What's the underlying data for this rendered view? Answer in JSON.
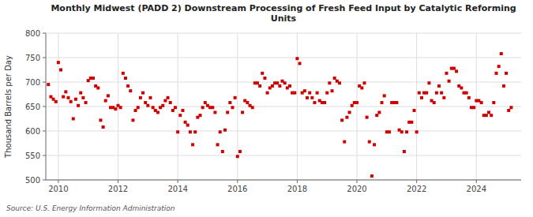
{
  "chart_data": {
    "type": "scatter",
    "title": "Monthly Midwest (PADD 2) Downstream Processing of Fresh Feed Input by Catalytic Reforming\nUnits",
    "ylabel": "Thousand Barrels per Day",
    "source": "Source: U.S. Energy Information Administration",
    "color": "#cc0000",
    "marker": "square",
    "grid": true,
    "ylim": [
      500,
      800
    ],
    "yticks": [
      500,
      550,
      600,
      650,
      700,
      750,
      800
    ],
    "xlim": [
      2009.58,
      2025.5
    ],
    "xticks": [
      2010,
      2012,
      2014,
      2016,
      2018,
      2020,
      2022,
      2024
    ],
    "x": [
      2009.667,
      2009.75,
      2009.833,
      2009.917,
      2010.0,
      2010.083,
      2010.167,
      2010.25,
      2010.333,
      2010.417,
      2010.5,
      2010.583,
      2010.667,
      2010.75,
      2010.833,
      2010.917,
      2011.0,
      2011.083,
      2011.167,
      2011.25,
      2011.333,
      2011.417,
      2011.5,
      2011.583,
      2011.667,
      2011.75,
      2011.833,
      2011.917,
      2012.0,
      2012.083,
      2012.167,
      2012.25,
      2012.333,
      2012.417,
      2012.5,
      2012.583,
      2012.667,
      2012.75,
      2012.833,
      2012.917,
      2013.0,
      2013.083,
      2013.167,
      2013.25,
      2013.333,
      2013.417,
      2013.5,
      2013.583,
      2013.667,
      2013.75,
      2013.833,
      2013.917,
      2014.0,
      2014.083,
      2014.167,
      2014.25,
      2014.333,
      2014.417,
      2014.5,
      2014.583,
      2014.667,
      2014.75,
      2014.833,
      2014.917,
      2015.0,
      2015.083,
      2015.167,
      2015.25,
      2015.333,
      2015.417,
      2015.5,
      2015.583,
      2015.667,
      2015.75,
      2015.833,
      2015.917,
      2016.0,
      2016.083,
      2016.167,
      2016.25,
      2016.333,
      2016.417,
      2016.5,
      2016.583,
      2016.667,
      2016.75,
      2016.833,
      2016.917,
      2017.0,
      2017.083,
      2017.167,
      2017.25,
      2017.333,
      2017.417,
      2017.5,
      2017.583,
      2017.667,
      2017.75,
      2017.833,
      2017.917,
      2018.0,
      2018.083,
      2018.167,
      2018.25,
      2018.333,
      2018.417,
      2018.5,
      2018.583,
      2018.667,
      2018.75,
      2018.833,
      2018.917,
      2019.0,
      2019.083,
      2019.167,
      2019.25,
      2019.333,
      2019.417,
      2019.5,
      2019.583,
      2019.667,
      2019.75,
      2019.833,
      2019.917,
      2020.0,
      2020.083,
      2020.167,
      2020.25,
      2020.333,
      2020.417,
      2020.5,
      2020.583,
      2020.667,
      2020.75,
      2020.833,
      2020.917,
      2021.0,
      2021.083,
      2021.167,
      2021.25,
      2021.333,
      2021.417,
      2021.5,
      2021.583,
      2021.667,
      2021.75,
      2021.833,
      2021.917,
      2022.0,
      2022.083,
      2022.167,
      2022.25,
      2022.333,
      2022.417,
      2022.5,
      2022.583,
      2022.667,
      2022.75,
      2022.833,
      2022.917,
      2023.0,
      2023.083,
      2023.167,
      2023.25,
      2023.333,
      2023.417,
      2023.5,
      2023.583,
      2023.667,
      2023.75,
      2023.833,
      2023.917,
      2024.0,
      2024.083,
      2024.167,
      2024.25,
      2024.333,
      2024.417,
      2024.5,
      2024.583,
      2024.667,
      2024.75,
      2024.833,
      2024.917,
      2025.0,
      2025.083,
      2025.167
    ],
    "values": [
      695,
      670,
      665,
      660,
      740,
      725,
      670,
      680,
      668,
      660,
      625,
      665,
      652,
      678,
      668,
      658,
      703,
      708,
      708,
      692,
      688,
      622,
      608,
      662,
      672,
      648,
      648,
      645,
      652,
      648,
      718,
      708,
      692,
      682,
      622,
      642,
      648,
      668,
      678,
      658,
      652,
      668,
      648,
      642,
      638,
      648,
      652,
      662,
      668,
      658,
      642,
      648,
      598,
      632,
      642,
      618,
      612,
      598,
      572,
      598,
      628,
      632,
      648,
      658,
      652,
      648,
      648,
      638,
      572,
      598,
      558,
      602,
      638,
      658,
      648,
      668,
      548,
      558,
      638,
      662,
      658,
      652,
      648,
      698,
      698,
      692,
      718,
      708,
      678,
      688,
      692,
      698,
      698,
      692,
      702,
      698,
      688,
      692,
      678,
      678,
      748,
      738,
      678,
      682,
      668,
      678,
      668,
      658,
      678,
      662,
      658,
      658,
      678,
      698,
      682,
      708,
      702,
      698,
      622,
      578,
      628,
      638,
      652,
      658,
      658,
      692,
      688,
      698,
      628,
      578,
      508,
      572,
      632,
      638,
      658,
      672,
      598,
      598,
      658,
      658,
      658,
      602,
      598,
      558,
      598,
      618,
      618,
      642,
      598,
      678,
      668,
      678,
      678,
      698,
      662,
      658,
      678,
      692,
      678,
      668,
      718,
      702,
      728,
      728,
      722,
      692,
      688,
      678,
      678,
      668,
      648,
      648,
      662,
      662,
      658,
      632,
      632,
      638,
      632,
      658,
      718,
      732,
      758,
      692,
      718,
      642,
      648
    ]
  }
}
